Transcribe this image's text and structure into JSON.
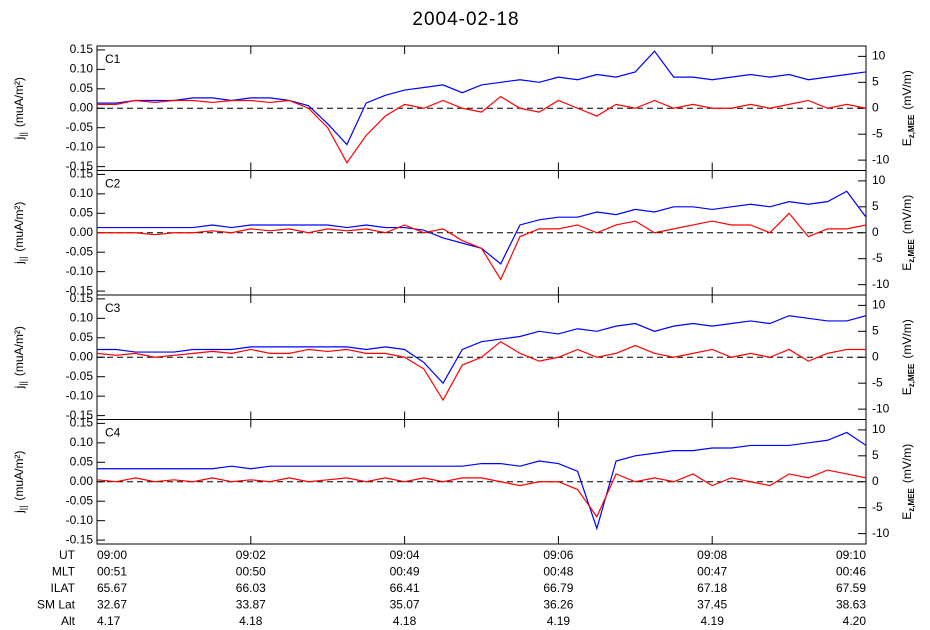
{
  "title": "2004-02-18",
  "chart_data": [
    {
      "type": "line",
      "label": "C1",
      "ylabel": {
        "main": "j",
        "sub": "||",
        "unit": "(muA/m²)"
      },
      "y2label": {
        "main": "E",
        "sub": "z,MEE",
        "unit": "(mV/m)"
      },
      "x": [
        0,
        0.25,
        0.5,
        0.75,
        1,
        1.25,
        1.5,
        1.75,
        2,
        2.25,
        2.5,
        2.75,
        3,
        3.25,
        3.5,
        3.75,
        4,
        4.25,
        4.5,
        4.75,
        5,
        5.25,
        5.5,
        5.75,
        6,
        6.25,
        6.5,
        6.75,
        7,
        7.25,
        7.5,
        7.75,
        8,
        8.25,
        8.5,
        8.75,
        9,
        9.25,
        9.5,
        9.75,
        10
      ],
      "xlim": [
        0,
        10
      ],
      "xticks": [
        0,
        2,
        4,
        6,
        8,
        10
      ],
      "ylim": [
        -0.16,
        0.16
      ],
      "yticks": [
        {
          "value": -0.15,
          "label": "-0.15"
        },
        {
          "value": -0.1,
          "label": "-0.10"
        },
        {
          "value": -0.05,
          "label": "-0.05"
        },
        {
          "value": 0,
          "label": "0.00"
        },
        {
          "value": 0.05,
          "label": "0.05"
        },
        {
          "value": 0.1,
          "label": "0.10"
        },
        {
          "value": 0.15,
          "label": "0.15"
        }
      ],
      "y2lim": [
        -12,
        12
      ],
      "y2ticks": [
        -10,
        -5,
        0,
        5,
        10
      ],
      "series": [
        {
          "color": "#0000ff",
          "axis": "y2",
          "values": [
            1,
            1,
            1.5,
            1.5,
            1.5,
            2,
            2,
            1.5,
            2,
            2,
            1.5,
            0.5,
            -3,
            -7,
            1,
            2.5,
            3.5,
            4,
            4.5,
            3,
            4.5,
            5,
            5.5,
            5,
            6,
            5.5,
            6.5,
            6,
            7,
            11,
            6,
            6,
            5.5,
            6,
            6.5,
            6,
            6.5,
            5.5,
            6,
            6.5,
            7
          ]
        },
        {
          "color": "#ff0000",
          "axis": "y",
          "values": [
            0.01,
            0.01,
            0.02,
            0.015,
            0.02,
            0.02,
            0.015,
            0.02,
            0.02,
            0.015,
            0.02,
            0.0,
            -0.05,
            -0.14,
            -0.07,
            -0.02,
            0.01,
            0.0,
            0.02,
            0.0,
            -0.01,
            0.03,
            0.0,
            -0.01,
            0.02,
            0.0,
            -0.02,
            0.01,
            0.0,
            0.02,
            0.0,
            0.01,
            0.0,
            0.0,
            0.01,
            0.0,
            0.01,
            0.02,
            0.0,
            0.01,
            0.0
          ]
        }
      ]
    },
    {
      "type": "line",
      "label": "C2",
      "ylabel": {
        "main": "j",
        "sub": "||",
        "unit": "(muA/m²)"
      },
      "y2label": {
        "main": "E",
        "sub": "z,MEE",
        "unit": "(mV/m)"
      },
      "x": [
        0,
        0.25,
        0.5,
        0.75,
        1,
        1.25,
        1.5,
        1.75,
        2,
        2.25,
        2.5,
        2.75,
        3,
        3.25,
        3.5,
        3.75,
        4,
        4.25,
        4.5,
        4.75,
        5,
        5.25,
        5.5,
        5.75,
        6,
        6.25,
        6.5,
        6.75,
        7,
        7.25,
        7.5,
        7.75,
        8,
        8.25,
        8.5,
        8.75,
        9,
        9.25,
        9.5,
        9.75,
        10
      ],
      "xlim": [
        0,
        10
      ],
      "xticks": [
        0,
        2,
        4,
        6,
        8,
        10
      ],
      "ylim": [
        -0.16,
        0.16
      ],
      "yticks": [
        {
          "value": -0.15,
          "label": "-0.15"
        },
        {
          "value": -0.1,
          "label": "-0.10"
        },
        {
          "value": -0.05,
          "label": "-0.05"
        },
        {
          "value": 0,
          "label": "0.00"
        },
        {
          "value": 0.05,
          "label": "0.05"
        },
        {
          "value": 0.1,
          "label": "0.10"
        },
        {
          "value": 0.15,
          "label": "0.15"
        }
      ],
      "y2lim": [
        -12,
        12
      ],
      "y2ticks": [
        -10,
        -5,
        0,
        5,
        10
      ],
      "series": [
        {
          "color": "#0000ff",
          "axis": "y2",
          "values": [
            1,
            1,
            1,
            1,
            1,
            1,
            1.5,
            1,
            1.5,
            1.5,
            1.5,
            1.5,
            1.5,
            1,
            1.5,
            1,
            1,
            0.5,
            -1,
            -2,
            -3,
            -6,
            1.5,
            2.5,
            3,
            3,
            4,
            3.5,
            4.5,
            4,
            5,
            5,
            4.5,
            5,
            5.5,
            5,
            6,
            5.5,
            6,
            8,
            3
          ]
        },
        {
          "color": "#ff0000",
          "axis": "y",
          "values": [
            0.0,
            0.0,
            0.0,
            -0.005,
            0.0,
            0.0,
            0.005,
            0.0,
            0.01,
            0.005,
            0.01,
            0.0,
            0.01,
            0.005,
            0.01,
            0.0,
            0.02,
            0.0,
            0.01,
            -0.02,
            -0.04,
            -0.12,
            -0.01,
            0.01,
            0.01,
            0.02,
            0.0,
            0.02,
            0.03,
            0.0,
            0.01,
            0.02,
            0.03,
            0.02,
            0.02,
            0.0,
            0.05,
            -0.01,
            0.01,
            0.01,
            0.02
          ]
        }
      ]
    },
    {
      "type": "line",
      "label": "C3",
      "ylabel": {
        "main": "j",
        "sub": "||",
        "unit": "(muA/m²)"
      },
      "y2label": {
        "main": "E",
        "sub": "z,MEE",
        "unit": "(mV/m)"
      },
      "x": [
        0,
        0.25,
        0.5,
        0.75,
        1,
        1.25,
        1.5,
        1.75,
        2,
        2.25,
        2.5,
        2.75,
        3,
        3.25,
        3.5,
        3.75,
        4,
        4.25,
        4.5,
        4.75,
        5,
        5.25,
        5.5,
        5.75,
        6,
        6.25,
        6.5,
        6.75,
        7,
        7.25,
        7.5,
        7.75,
        8,
        8.25,
        8.5,
        8.75,
        9,
        9.25,
        9.5,
        9.75,
        10
      ],
      "xlim": [
        0,
        10
      ],
      "xticks": [
        0,
        2,
        4,
        6,
        8,
        10
      ],
      "ylim": [
        -0.16,
        0.16
      ],
      "yticks": [
        {
          "value": -0.15,
          "label": "-0.15"
        },
        {
          "value": -0.1,
          "label": "-0.10"
        },
        {
          "value": -0.05,
          "label": "-0.05"
        },
        {
          "value": 0,
          "label": "0.00"
        },
        {
          "value": 0.05,
          "label": "0.05"
        },
        {
          "value": 0.1,
          "label": "0.10"
        },
        {
          "value": 0.15,
          "label": "0.15"
        }
      ],
      "y2lim": [
        -12,
        12
      ],
      "y2ticks": [
        -10,
        -5,
        0,
        5,
        10
      ],
      "series": [
        {
          "color": "#0000ff",
          "axis": "y2",
          "values": [
            1.5,
            1.5,
            1,
            1,
            1,
            1.5,
            1.5,
            1.5,
            2,
            2,
            2,
            2,
            2,
            2,
            1.5,
            2,
            1.5,
            -1,
            -5,
            1.5,
            3,
            3.5,
            4,
            5,
            4.5,
            5.5,
            5,
            6,
            6.5,
            5,
            6,
            6.5,
            6,
            6.5,
            7,
            6.5,
            8,
            7.5,
            7,
            7,
            8
          ]
        },
        {
          "color": "#ff0000",
          "axis": "y",
          "values": [
            0.01,
            0.005,
            0.01,
            0.0,
            0.005,
            0.01,
            0.015,
            0.01,
            0.02,
            0.01,
            0.01,
            0.02,
            0.015,
            0.02,
            0.01,
            0.01,
            0.0,
            -0.03,
            -0.11,
            -0.02,
            0.0,
            0.04,
            0.01,
            -0.01,
            0.0,
            0.02,
            0.0,
            0.01,
            0.03,
            0.01,
            0.0,
            0.01,
            0.02,
            0.0,
            0.01,
            0.0,
            0.02,
            -0.01,
            0.01,
            0.02,
            0.02
          ]
        }
      ]
    },
    {
      "type": "line",
      "label": "C4",
      "ylabel": {
        "main": "j",
        "sub": "||",
        "unit": "(muA/m²)"
      },
      "y2label": {
        "main": "E",
        "sub": "z,MEE",
        "unit": "(mV/m)"
      },
      "x": [
        0,
        0.25,
        0.5,
        0.75,
        1,
        1.25,
        1.5,
        1.75,
        2,
        2.25,
        2.5,
        2.75,
        3,
        3.25,
        3.5,
        3.75,
        4,
        4.25,
        4.5,
        4.75,
        5,
        5.25,
        5.5,
        5.75,
        6,
        6.25,
        6.5,
        6.75,
        7,
        7.25,
        7.5,
        7.75,
        8,
        8.25,
        8.5,
        8.75,
        9,
        9.25,
        9.5,
        9.75,
        10
      ],
      "xlim": [
        0,
        10
      ],
      "xticks": [
        0,
        2,
        4,
        6,
        8,
        10
      ],
      "ylim": [
        -0.16,
        0.16
      ],
      "yticks": [
        {
          "value": -0.15,
          "label": "-0.15"
        },
        {
          "value": -0.1,
          "label": "-0.10"
        },
        {
          "value": -0.05,
          "label": "-0.05"
        },
        {
          "value": 0,
          "label": "0.00"
        },
        {
          "value": 0.05,
          "label": "0.05"
        },
        {
          "value": 0.1,
          "label": "0.10"
        },
        {
          "value": 0.15,
          "label": "0.15"
        }
      ],
      "y2lim": [
        -12,
        12
      ],
      "y2ticks": [
        -10,
        -5,
        0,
        5,
        10
      ],
      "series": [
        {
          "color": "#0000ff",
          "axis": "y2",
          "values": [
            2.5,
            2.5,
            2.5,
            2.5,
            2.5,
            2.5,
            2.5,
            3,
            2.5,
            3,
            3,
            3,
            3,
            3,
            3,
            3,
            3,
            3,
            3,
            3,
            3.5,
            3.5,
            3,
            4,
            3.5,
            2,
            -9,
            4,
            5,
            5.5,
            6,
            6,
            6.5,
            6.5,
            7,
            7,
            7,
            7.5,
            8,
            9.5,
            7
          ]
        },
        {
          "color": "#ff0000",
          "axis": "y",
          "values": [
            0.005,
            0.0,
            0.01,
            0.0,
            0.005,
            0.0,
            0.01,
            0.0,
            0.005,
            0.0,
            0.01,
            0.0,
            0.005,
            0.01,
            0.0,
            0.01,
            0.0,
            0.01,
            0.0,
            0.01,
            0.01,
            0.0,
            -0.01,
            0.0,
            0.0,
            -0.02,
            -0.09,
            0.02,
            0.0,
            0.01,
            0.0,
            0.02,
            -0.01,
            0.01,
            0.0,
            -0.01,
            0.02,
            0.01,
            0.03,
            0.02,
            0.01
          ]
        }
      ]
    }
  ],
  "ephemeris": {
    "rows": [
      {
        "label": "UT",
        "values": [
          "09:00",
          "09:02",
          "09:04",
          "09:06",
          "09:08",
          "09:10"
        ]
      },
      {
        "label": "MLT",
        "values": [
          "00:51",
          "00:50",
          "00:49",
          "00:48",
          "00:47",
          "00:46"
        ]
      },
      {
        "label": "ILAT",
        "values": [
          "65.67",
          "66.03",
          "66.41",
          "66.79",
          "67.18",
          "67.59"
        ]
      },
      {
        "label": "SM Lat",
        "values": [
          "32.67",
          "33.87",
          "35.07",
          "36.26",
          "37.45",
          "38.63"
        ]
      },
      {
        "label": "Alt",
        "values": [
          "4.17",
          "4.18",
          "4.18",
          "4.19",
          "4.19",
          "4.20"
        ]
      }
    ]
  }
}
